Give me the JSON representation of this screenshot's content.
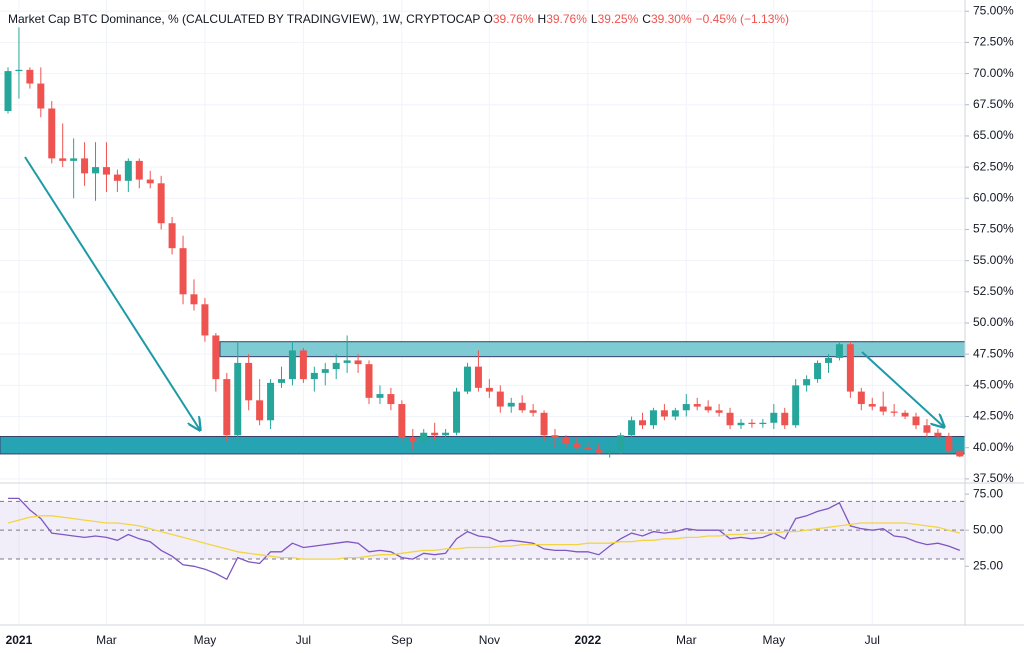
{
  "chart_data": [
    {
      "type": "candlestick",
      "title": "Market Cap BTC Dominance, % (CALCULATED BY TRADINGVIEW), 1W, CRYPTOCAP",
      "legend": [
        {
          "key": "O",
          "value": "39.76%"
        },
        {
          "key": "H",
          "value": "39.76%"
        },
        {
          "key": "L",
          "value": "39.25%"
        },
        {
          "key": "C",
          "value": "39.30%"
        },
        {
          "value": "−0.45% (−1.13%)"
        }
      ],
      "categories": [
        null,
        "2021",
        null,
        null,
        null,
        null,
        null,
        null,
        null,
        "Mar",
        null,
        null,
        null,
        null,
        null,
        null,
        null,
        null,
        "May",
        null,
        null,
        null,
        null,
        null,
        null,
        null,
        null,
        "Jul",
        null,
        null,
        null,
        null,
        null,
        null,
        null,
        null,
        "Sep",
        null,
        null,
        null,
        null,
        null,
        null,
        null,
        "Nov",
        null,
        null,
        null,
        null,
        null,
        null,
        null,
        null,
        "2022",
        null,
        null,
        null,
        null,
        null,
        null,
        null,
        null,
        "Mar",
        null,
        null,
        null,
        null,
        null,
        null,
        null,
        "May",
        null,
        null,
        null,
        null,
        null,
        null,
        null,
        null,
        "Jul",
        null,
        null,
        null,
        null,
        null,
        null,
        null,
        null
      ],
      "open": [
        67.0,
        70.2,
        70.3,
        69.2,
        67.2,
        63.2,
        63.0,
        63.2,
        62.0,
        62.5,
        61.9,
        61.4,
        63.0,
        61.5,
        61.2,
        58.0,
        56.0,
        52.3,
        51.5,
        49.0,
        45.5,
        41.0,
        46.8,
        43.8,
        42.2,
        45.2,
        45.5,
        47.8,
        45.5,
        46.0,
        46.3,
        46.8,
        47.0,
        46.7,
        44.0,
        44.3,
        43.5,
        40.8,
        40.5,
        41.2,
        41.0,
        41.2,
        44.5,
        46.5,
        44.8,
        44.5,
        43.3,
        43.6,
        43.0,
        42.8,
        41.0,
        40.8,
        40.3,
        40.0,
        39.9,
        39.6,
        39.8,
        41.0,
        42.2,
        41.8,
        43.0,
        42.5,
        43.0,
        43.5,
        43.3,
        43.0,
        42.8,
        41.8,
        42.0,
        41.9,
        42.0,
        42.8,
        41.8,
        45.0,
        45.5,
        46.8,
        47.2,
        48.3,
        44.5,
        43.5,
        43.3,
        42.9,
        42.8,
        42.5,
        41.8,
        41.2,
        40.9,
        39.76
      ],
      "high": [
        70.5,
        73.7,
        70.5,
        70.5,
        67.8,
        66.0,
        64.8,
        64.5,
        64.5,
        64.5,
        62.3,
        63.2,
        63.2,
        62.2,
        61.8,
        58.5,
        57.0,
        53.5,
        52.0,
        49.2,
        46.0,
        48.5,
        47.5,
        45.5,
        45.5,
        46.5,
        48.5,
        48.0,
        46.5,
        46.8,
        47.5,
        49.0,
        47.5,
        47.0,
        45.0,
        44.8,
        43.8,
        41.5,
        41.5,
        42.0,
        41.5,
        44.8,
        46.8,
        47.8,
        45.5,
        45.0,
        44.0,
        44.2,
        43.5,
        43.0,
        41.5,
        41.0,
        40.8,
        40.5,
        40.3,
        40.5,
        41.2,
        42.5,
        42.8,
        43.2,
        43.5,
        43.2,
        44.3,
        44.0,
        43.8,
        43.5,
        43.2,
        42.3,
        42.3,
        42.3,
        43.5,
        43.2,
        45.5,
        45.8,
        47.0,
        47.5,
        48.5,
        48.5,
        44.8,
        44.0,
        44.5,
        43.5,
        43.0,
        42.8,
        42.3,
        41.5,
        41.2,
        39.76
      ],
      "low": [
        66.8,
        68.0,
        68.8,
        66.5,
        62.8,
        62.5,
        60.0,
        61.0,
        59.8,
        60.5,
        60.5,
        60.5,
        60.8,
        60.8,
        57.5,
        55.5,
        51.5,
        51.0,
        48.5,
        44.5,
        40.5,
        40.5,
        43.0,
        41.8,
        41.5,
        44.8,
        45.0,
        45.2,
        44.5,
        45.0,
        45.5,
        46.0,
        46.0,
        43.5,
        43.5,
        43.0,
        40.5,
        39.8,
        40.2,
        40.6,
        40.5,
        41.0,
        44.3,
        44.5,
        44.0,
        42.8,
        42.8,
        42.8,
        42.5,
        40.5,
        40.0,
        40.0,
        39.8,
        39.8,
        39.5,
        39.2,
        39.5,
        40.8,
        41.5,
        41.5,
        42.2,
        42.2,
        42.5,
        43.0,
        42.8,
        42.5,
        41.5,
        41.5,
        41.6,
        41.6,
        41.5,
        41.5,
        41.6,
        44.5,
        45.2,
        46.0,
        47.0,
        44.0,
        43.0,
        43.0,
        42.6,
        42.5,
        42.3,
        41.5,
        40.8,
        40.6,
        39.6,
        39.25
      ],
      "close": [
        70.2,
        70.3,
        69.2,
        67.2,
        63.2,
        63.0,
        63.2,
        62.0,
        62.5,
        61.9,
        61.4,
        63.0,
        61.5,
        61.2,
        58.0,
        56.0,
        52.3,
        51.5,
        49.0,
        45.5,
        41.0,
        46.8,
        43.8,
        42.2,
        45.2,
        45.5,
        47.8,
        45.5,
        46.0,
        46.3,
        46.8,
        47.0,
        46.7,
        44.0,
        44.3,
        43.5,
        40.8,
        40.5,
        41.2,
        41.0,
        41.2,
        44.5,
        46.5,
        44.8,
        44.5,
        43.3,
        43.6,
        43.0,
        42.8,
        41.0,
        40.8,
        40.3,
        40.0,
        39.9,
        39.6,
        39.8,
        41.0,
        42.2,
        41.8,
        43.0,
        42.5,
        43.0,
        43.5,
        43.3,
        43.0,
        42.8,
        41.8,
        42.0,
        41.9,
        42.0,
        42.8,
        41.8,
        45.0,
        45.5,
        46.8,
        47.2,
        48.3,
        44.5,
        43.5,
        43.3,
        42.9,
        42.8,
        42.5,
        41.8,
        41.2,
        40.9,
        39.76,
        39.3
      ],
      "up_color": "#26a69a",
      "down_color": "#ef5350",
      "ylim": [
        37.25,
        75.9
      ],
      "yticks": [
        {
          "value": 37.5,
          "label": "37.50%"
        },
        {
          "value": 40,
          "label": "40.00%"
        },
        {
          "value": 42.5,
          "label": "42.50%"
        },
        {
          "value": 45,
          "label": "45.00%"
        },
        {
          "value": 47.5,
          "label": "47.50%"
        },
        {
          "value": 50,
          "label": "50.00%"
        },
        {
          "value": 52.5,
          "label": "52.50%"
        },
        {
          "value": 55,
          "label": "55.00%"
        },
        {
          "value": 57.5,
          "label": "57.50%"
        },
        {
          "value": 60,
          "label": "60.00%"
        },
        {
          "value": 62.5,
          "label": "62.50%"
        },
        {
          "value": 65,
          "label": "65.00%"
        },
        {
          "value": 67.5,
          "label": "67.50%"
        },
        {
          "value": 70,
          "label": "70.00%"
        },
        {
          "value": 72.5,
          "label": "72.50%"
        },
        {
          "value": 75,
          "label": "75.00%"
        }
      ],
      "grid": true,
      "zones": [
        {
          "low": 39.5,
          "high": 40.9,
          "color": "#26a4b3"
        },
        {
          "low": 47.3,
          "high": 48.5,
          "color": "#7fcbd3"
        }
      ]
    },
    {
      "type": "line",
      "series": [
        {
          "color": "#7e57c2",
          "values": [
            72,
            72,
            64,
            58,
            48,
            47,
            46,
            45,
            46,
            45,
            43,
            47,
            44,
            42,
            36,
            32,
            26,
            25,
            23,
            20,
            16,
            31,
            28,
            27,
            35,
            35,
            41,
            38,
            39,
            40,
            41,
            42,
            41,
            35,
            36,
            35,
            31,
            30,
            34,
            33,
            34,
            44,
            49,
            46,
            45,
            42,
            43,
            42,
            41,
            37,
            36,
            36,
            35,
            35,
            33,
            39,
            44,
            48,
            46,
            49,
            48,
            49,
            51,
            50,
            50,
            50,
            44,
            45,
            44,
            45,
            48,
            44,
            58,
            60,
            63,
            65,
            69,
            53,
            51,
            50,
            51,
            46,
            45,
            42,
            40,
            41,
            39,
            36
          ]
        },
        {
          "color": "#f2d544",
          "values": [
            55,
            57,
            59,
            60,
            60,
            59,
            58,
            57,
            56,
            55,
            55,
            54,
            53,
            51,
            49,
            47,
            45,
            43,
            41,
            39,
            37,
            35,
            34,
            33,
            32,
            31,
            31,
            30,
            30,
            30,
            30,
            31,
            31,
            32,
            33,
            33,
            34,
            35,
            36,
            36,
            37,
            37,
            38,
            38,
            38,
            39,
            39,
            40,
            40,
            40,
            40,
            40,
            40,
            41,
            41,
            41,
            42,
            42,
            43,
            43,
            44,
            44,
            45,
            45,
            46,
            46,
            47,
            47,
            48,
            48,
            48,
            49,
            49,
            50,
            51,
            52,
            53,
            54,
            55,
            55,
            55,
            55,
            55,
            54,
            53,
            52,
            50,
            48
          ]
        }
      ],
      "levels": [
        30,
        50,
        70
      ],
      "band_color": "#7e57c2",
      "ylim": [
        -15,
        82
      ],
      "yticks": [
        {
          "value": 25,
          "label": "25.00"
        },
        {
          "value": 50,
          "label": "50.00"
        },
        {
          "value": 75,
          "label": "75.00"
        }
      ]
    }
  ]
}
